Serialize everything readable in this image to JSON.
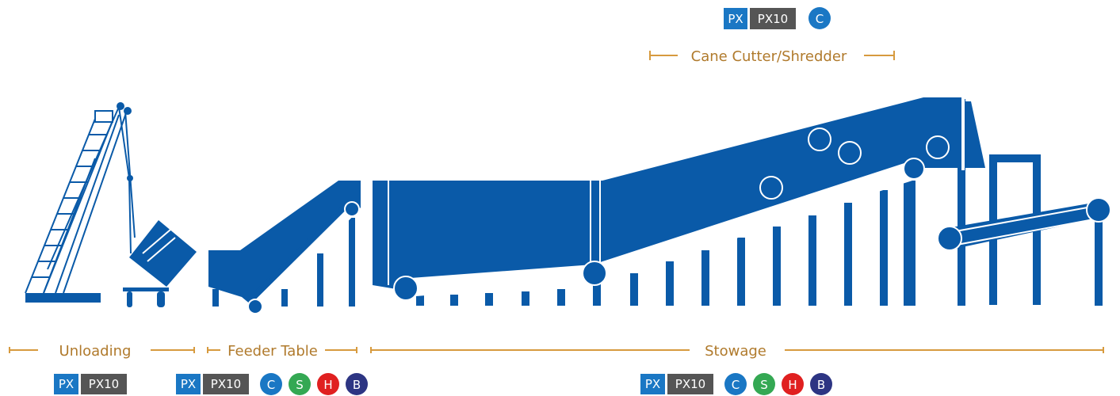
{
  "colors": {
    "machine_blue": "#0a5aa8",
    "label_gold": "#d79a3e",
    "label_text": "#b07a2c",
    "badge_px": "#1a77c4",
    "badge_px10": "#555555",
    "badge_c": "#1a77c4",
    "badge_s": "#34a853",
    "badge_h": "#e02020",
    "badge_b": "#2d3583"
  },
  "sections": {
    "unloading": "Unloading",
    "feeder_table": "Feeder Table",
    "stowage": "Stowage",
    "cane_cutter": "Cane Cutter/Shredder"
  },
  "badges": {
    "px": "PX",
    "px10": "PX10",
    "c": "C",
    "s": "S",
    "h": "H",
    "b": "B"
  }
}
